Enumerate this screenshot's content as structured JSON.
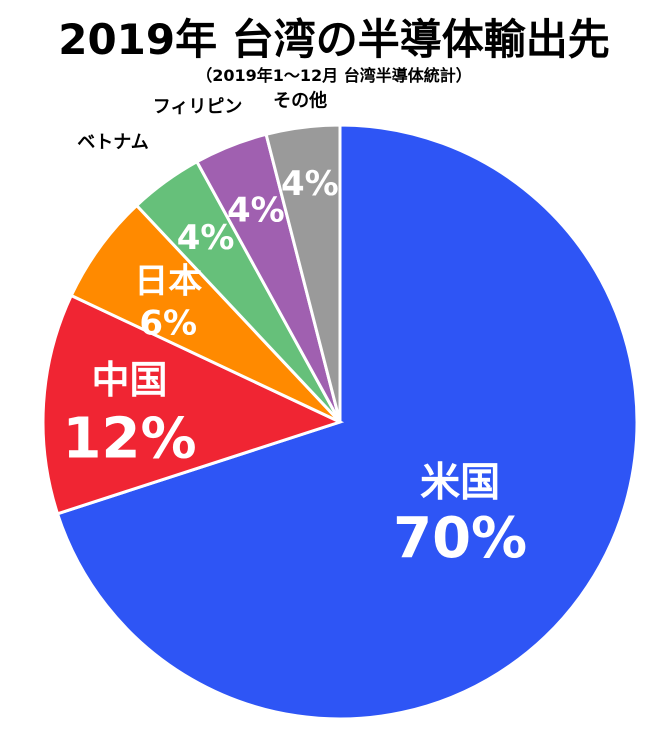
{
  "chart_data": {
    "type": "pie",
    "title": "2019年 台湾の半導体輸出先",
    "subtitle": "（2019年1～12月 台湾半導体統計）",
    "unit": "%",
    "slices": [
      {
        "name": "米国",
        "value": 70,
        "label": "70%",
        "color": "#2e55f5"
      },
      {
        "name": "中国",
        "value": 12,
        "label": "12%",
        "color": "#f02533"
      },
      {
        "name": "日本",
        "value": 6,
        "label": "6%",
        "color": "#ff8a00"
      },
      {
        "name": "ベトナム",
        "value": 4,
        "label": "4%",
        "color": "#66c07a"
      },
      {
        "name": "フィリピン",
        "value": 4,
        "label": "4%",
        "color": "#a060b0"
      },
      {
        "name": "その他",
        "value": 4,
        "label": "4%",
        "color": "#9a9a9a"
      }
    ]
  }
}
